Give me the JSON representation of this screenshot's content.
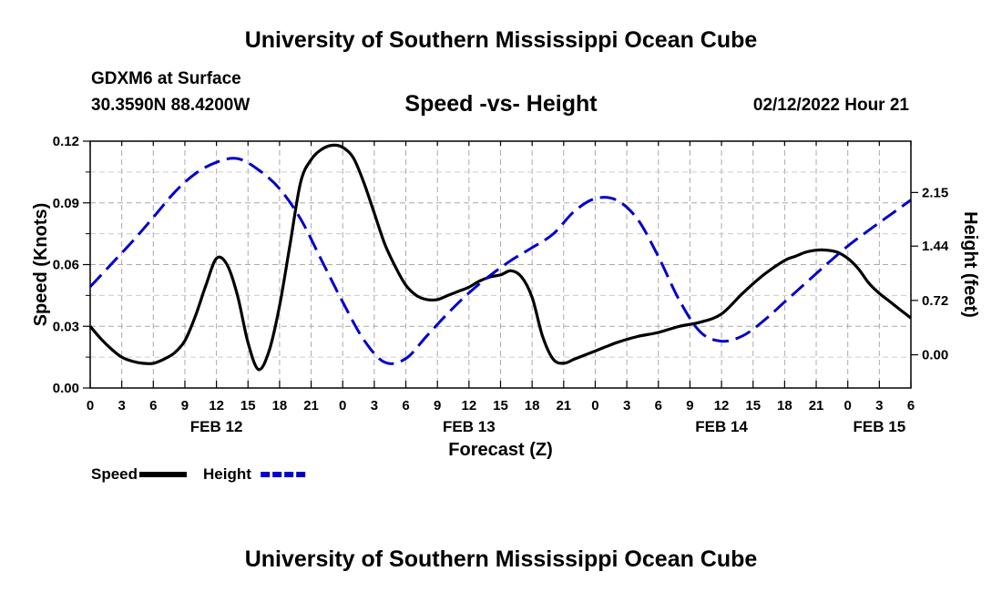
{
  "header": {
    "title": "University of Southern Mississippi Ocean Cube",
    "model": "GDXM6 at Surface",
    "coords": "30.3590N   88.4200W",
    "subtitle": "Speed -vs- Height",
    "datetime": "02/12/2022 Hour 21"
  },
  "footer": {
    "title": "University of Southern Mississippi Ocean Cube"
  },
  "chart_data": {
    "type": "line",
    "title": "Speed -vs- Height",
    "xlabel": "Forecast (Z)",
    "ylabel": "Speed (Knots)",
    "ylabel_right": "Height (feet)",
    "x_hours_range": [
      0,
      78
    ],
    "x_tick_labels": [
      "0",
      "3",
      "6",
      "9",
      "12",
      "15",
      "18",
      "21",
      "0",
      "3",
      "6",
      "9",
      "12",
      "15",
      "18",
      "21",
      "0",
      "3",
      "6",
      "9",
      "12",
      "15",
      "18",
      "21",
      "0",
      "3",
      "6"
    ],
    "date_labels": [
      {
        "label": "FEB 12",
        "hour": 12
      },
      {
        "label": "FEB 13",
        "hour": 36
      },
      {
        "label": "FEB 14",
        "hour": 60
      },
      {
        "label": "FEB 15",
        "hour": 75
      }
    ],
    "ylim": [
      0,
      0.12
    ],
    "y_tick_labels": [
      "0.00",
      "0.03",
      "0.06",
      "0.09",
      "0.12"
    ],
    "ylim_right": [
      -0.44,
      2.83
    ],
    "y_right_tick_values": [
      0.0,
      0.72,
      1.44,
      2.15
    ],
    "y_right_tick_labels": [
      "0.00",
      "0.72",
      "1.44",
      "2.15"
    ],
    "grid": true,
    "series": [
      {
        "name": "Speed",
        "axis": "left",
        "color": "#000000",
        "style": "solid",
        "x": [
          0,
          1,
          2,
          3,
          4,
          5,
          6,
          7,
          8,
          9,
          10,
          11,
          12,
          13,
          14,
          15,
          16,
          17,
          18,
          19,
          20,
          21,
          22,
          23,
          24,
          25,
          26,
          27,
          28,
          29,
          30,
          31,
          32,
          33,
          34,
          35,
          36,
          37,
          38,
          39,
          40,
          41,
          42,
          43,
          44,
          45,
          46,
          47,
          48,
          49,
          50,
          52,
          54,
          56,
          58,
          60,
          62,
          64,
          66,
          67,
          68,
          69,
          70,
          71,
          72,
          73,
          74,
          75,
          76,
          77,
          78
        ],
        "values": [
          0.03,
          0.024,
          0.019,
          0.015,
          0.013,
          0.012,
          0.012,
          0.014,
          0.017,
          0.023,
          0.035,
          0.05,
          0.063,
          0.06,
          0.045,
          0.022,
          0.009,
          0.018,
          0.04,
          0.07,
          0.1,
          0.111,
          0.116,
          0.118,
          0.117,
          0.112,
          0.1,
          0.085,
          0.07,
          0.059,
          0.05,
          0.045,
          0.043,
          0.043,
          0.045,
          0.047,
          0.049,
          0.052,
          0.054,
          0.055,
          0.057,
          0.054,
          0.044,
          0.025,
          0.014,
          0.012,
          0.014,
          0.016,
          0.018,
          0.02,
          0.022,
          0.025,
          0.027,
          0.03,
          0.032,
          0.036,
          0.046,
          0.055,
          0.062,
          0.064,
          0.066,
          0.067,
          0.067,
          0.066,
          0.063,
          0.058,
          0.051,
          0.046,
          0.042,
          0.038,
          0.034
        ]
      },
      {
        "name": "Height",
        "axis": "right",
        "color": "#0000cc",
        "style": "dashed",
        "x": [
          0,
          2,
          4,
          6,
          8,
          10,
          12,
          14,
          16,
          18,
          20,
          22,
          24,
          26,
          28,
          30,
          32,
          34,
          36,
          38,
          40,
          42,
          44,
          46,
          48,
          50,
          52,
          54,
          56,
          58,
          60,
          62,
          64,
          66,
          68,
          70,
          72,
          74,
          76,
          78
        ],
        "values": [
          0.9,
          1.2,
          1.5,
          1.82,
          2.15,
          2.4,
          2.55,
          2.6,
          2.45,
          2.2,
          1.8,
          1.25,
          0.7,
          0.2,
          -0.1,
          -0.05,
          0.25,
          0.55,
          0.82,
          1.05,
          1.25,
          1.42,
          1.6,
          1.9,
          2.07,
          2.05,
          1.8,
          1.3,
          0.72,
          0.3,
          0.18,
          0.25,
          0.45,
          0.7,
          0.95,
          1.2,
          1.44,
          1.65,
          1.85,
          2.05
        ]
      }
    ],
    "legend": [
      {
        "label": "Speed",
        "color": "#000000",
        "style": "solid"
      },
      {
        "label": "Height",
        "color": "#0000cc",
        "style": "dashed"
      }
    ],
    "legend_position": "bottom-left"
  }
}
